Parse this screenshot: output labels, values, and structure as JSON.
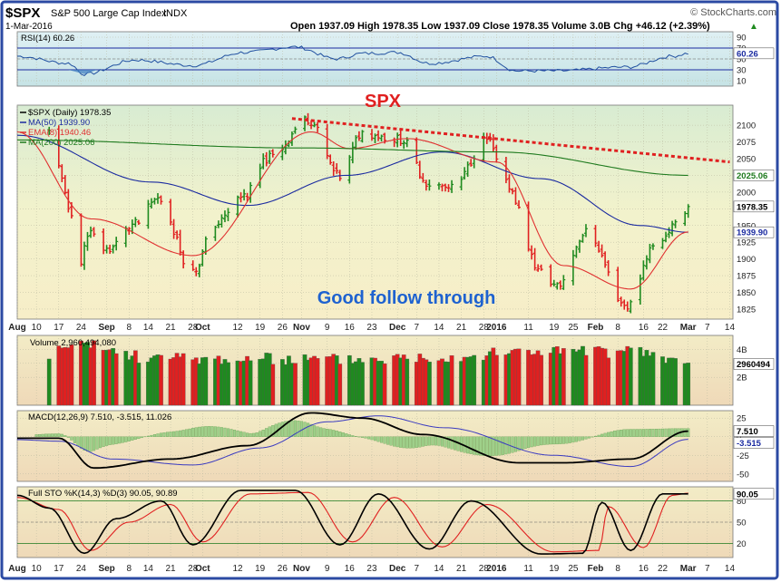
{
  "header": {
    "symbol": "$SPX",
    "name": "S&P 500 Large Cap Index",
    "exchange": "INDX",
    "date": "1-Mar-2016",
    "ohlc": "Open 1937.09  High 1978.35  Low 1937.09  Close 1978.35  Volume 3.0B  Chg +46.12 (+2.39%)",
    "ohlc_arrow": "▲",
    "watermark": "© StockCharts.com"
  },
  "colors": {
    "frame": "#2b4aa3",
    "up": "#1f8a1f",
    "down": "#e02020",
    "ma50": "#1a2aa0",
    "ema8": "#e03030",
    "ma200": "#1e7a1e",
    "annotation": "#e02020",
    "note": "#1e62d0"
  },
  "annotations": {
    "title": "SPX",
    "note": "Good follow through"
  },
  "chart_data": [
    {
      "type": "line",
      "panel": "rsi",
      "legend": "RSI(14) 60.26",
      "yticks": [
        90,
        70,
        50,
        30,
        10
      ],
      "ylim": [
        0,
        100
      ],
      "reference_lines": [
        70,
        30
      ],
      "last_value": "60.26",
      "x": [
        "2015-08-04",
        "2015-08-20",
        "2015-08-25",
        "2015-09-10",
        "2015-09-28",
        "2015-10-14",
        "2015-10-30",
        "2015-11-12",
        "2015-11-20",
        "2015-12-01",
        "2015-12-11",
        "2015-12-29",
        "2016-01-07",
        "2016-01-20",
        "2016-02-11",
        "2016-02-25",
        "2016-03-01"
      ],
      "y": [
        55,
        42,
        22,
        48,
        38,
        62,
        72,
        50,
        60,
        62,
        42,
        55,
        28,
        28,
        35,
        55,
        60.26
      ]
    },
    {
      "type": "bar",
      "panel": "price",
      "subtype": "ohlc",
      "legend": [
        "$SPX (Daily) 1978.35",
        "MA(50) 1939.90",
        "EMA(8) 1940.46",
        "MA(200) 2025.06"
      ],
      "yticks": [
        2100,
        2075,
        2050,
        2025,
        2000,
        1975,
        1950,
        1925,
        1900,
        1875,
        1850,
        1825
      ],
      "ylim": [
        1810,
        2130
      ],
      "xticks": [
        "Aug",
        "10",
        "17",
        "24",
        "Sep",
        "8",
        "14",
        "21",
        "28",
        "Oct",
        "12",
        "19",
        "26",
        "Nov",
        "9",
        "16",
        "23",
        "Dec",
        "7",
        "14",
        "21",
        "28",
        "2016",
        "11",
        "19",
        "25",
        "Feb",
        "8",
        "16",
        "22",
        "Mar",
        "7",
        "14"
      ],
      "ohlc": {
        "x": [
          "2015-08-14",
          "2015-08-21",
          "2015-08-24",
          "2015-08-26",
          "2015-09-01",
          "2015-09-10",
          "2015-09-17",
          "2015-09-28",
          "2015-10-05",
          "2015-10-14",
          "2015-10-22",
          "2015-11-03",
          "2015-11-13",
          "2015-11-20",
          "2015-12-02",
          "2015-12-11",
          "2015-12-18",
          "2015-12-29",
          "2016-01-04",
          "2016-01-15",
          "2016-01-20",
          "2016-01-29",
          "2016-02-11",
          "2016-02-19",
          "2016-02-26",
          "2016-03-01"
        ],
        "close": [
          2090,
          1970,
          1893,
          1940,
          1914,
          1952,
          1990,
          1881,
          1952,
          1995,
          2052,
          2109,
          2023,
          2089,
          2079,
          2012,
          2005,
          2078,
          2012,
          1880,
          1859,
          1940,
          1829,
          1918,
          1949,
          1978.35
        ]
      },
      "series": [
        {
          "name": "MA(50)",
          "last_value": "1939.90",
          "x": [
            "2015-08-04",
            "2015-09-15",
            "2015-10-15",
            "2015-11-15",
            "2015-12-15",
            "2016-01-15",
            "2016-02-15",
            "2016-03-01"
          ],
          "y": [
            2085,
            2015,
            1980,
            2025,
            2060,
            2020,
            1950,
            1939.9
          ]
        },
        {
          "name": "EMA(8)",
          "last_value": "1940.46",
          "x": [
            "2015-08-04",
            "2015-08-27",
            "2015-09-28",
            "2015-11-04",
            "2015-11-16",
            "2015-12-04",
            "2016-01-01",
            "2016-01-22",
            "2016-02-12",
            "2016-03-01"
          ],
          "y": [
            2090,
            1960,
            1905,
            2090,
            2065,
            2080,
            2045,
            1890,
            1855,
            1940.46
          ]
        },
        {
          "name": "MA(200)",
          "last_value": "2025.06",
          "x": [
            "2015-08-04",
            "2015-11-01",
            "2016-01-01",
            "2016-03-01"
          ],
          "y": [
            2078,
            2066,
            2060,
            2025.06
          ]
        }
      ],
      "trendline": {
        "x": [
          "2015-10-29",
          "2016-03-14"
        ],
        "y": [
          2110,
          2045
        ]
      },
      "last_value": "1978.35"
    },
    {
      "type": "bar",
      "panel": "volume",
      "legend": "Volume 2,960,494,080",
      "yticks": [
        "4B",
        "3B",
        "2B"
      ],
      "last_value": "2960494",
      "x": [
        "2015-08-04",
        "2015-08-24",
        "2015-09-15",
        "2015-10-15",
        "2015-11-15",
        "2015-12-15",
        "2016-01-15",
        "2016-02-15",
        "2016-03-01"
      ],
      "y": [
        3.0,
        4.3,
        3.4,
        3.3,
        3.3,
        3.5,
        3.9,
        3.8,
        2.96
      ]
    },
    {
      "type": "line",
      "panel": "macd",
      "legend": "MACD(12,26,9) 7.510, -3.515, 11.026",
      "yticks": [
        25,
        0,
        -25,
        -50
      ],
      "ylim": [
        -60,
        35
      ],
      "last_value": [
        "7.510",
        "-3.515"
      ],
      "series": [
        {
          "name": "MACD",
          "x": [
            "2015-08-04",
            "2015-08-17",
            "2015-08-28",
            "2015-09-21",
            "2015-10-15",
            "2015-11-04",
            "2015-11-20",
            "2015-12-09",
            "2016-01-08",
            "2016-01-22",
            "2016-02-12",
            "2016-03-01"
          ],
          "y": [
            -2,
            -2,
            -42,
            -30,
            -12,
            32,
            25,
            3,
            -35,
            -35,
            -30,
            7.51
          ]
        },
        {
          "name": "Signal",
          "x": [
            "2015-08-04",
            "2015-08-17",
            "2015-09-03",
            "2015-09-28",
            "2015-10-19",
            "2015-11-09",
            "2015-11-25",
            "2015-12-16",
            "2016-01-19",
            "2016-02-12",
            "2016-03-01"
          ],
          "y": [
            -4,
            -6,
            -30,
            -38,
            -15,
            20,
            28,
            12,
            -25,
            -40,
            -3.515
          ]
        }
      ]
    },
    {
      "type": "line",
      "panel": "stochastic",
      "legend": "Full STO %K(14,3) %D(3) 90.05, 90.89",
      "yticks": [
        80,
        50,
        20
      ],
      "ylim": [
        0,
        100
      ],
      "last_value": "90.05",
      "series": [
        {
          "name": "%K",
          "x": [
            "2015-08-04",
            "2015-08-14",
            "2015-08-25",
            "2015-09-04",
            "2015-09-18",
            "2015-09-28",
            "2015-10-13",
            "2015-10-30",
            "2015-11-13",
            "2015-11-25",
            "2015-12-11",
            "2015-12-24",
            "2016-01-15",
            "2016-01-28",
            "2016-02-03",
            "2016-02-12",
            "2016-02-22",
            "2016-03-01"
          ],
          "y": [
            88,
            70,
            6,
            55,
            80,
            18,
            95,
            95,
            18,
            90,
            12,
            80,
            5,
            6,
            78,
            10,
            90,
            90.05
          ]
        },
        {
          "name": "%D",
          "x": [
            "2015-08-04",
            "2015-08-17",
            "2015-08-27",
            "2015-09-08",
            "2015-09-21",
            "2015-10-01",
            "2015-10-16",
            "2015-11-03",
            "2015-11-17",
            "2015-11-30",
            "2015-12-15",
            "2015-12-29",
            "2016-01-19",
            "2016-02-02",
            "2016-02-05",
            "2016-02-16",
            "2016-02-25",
            "2016-03-01"
          ],
          "y": [
            85,
            68,
            10,
            50,
            75,
            22,
            90,
            92,
            22,
            85,
            15,
            75,
            8,
            10,
            72,
            14,
            88,
            90.89
          ]
        }
      ]
    }
  ]
}
